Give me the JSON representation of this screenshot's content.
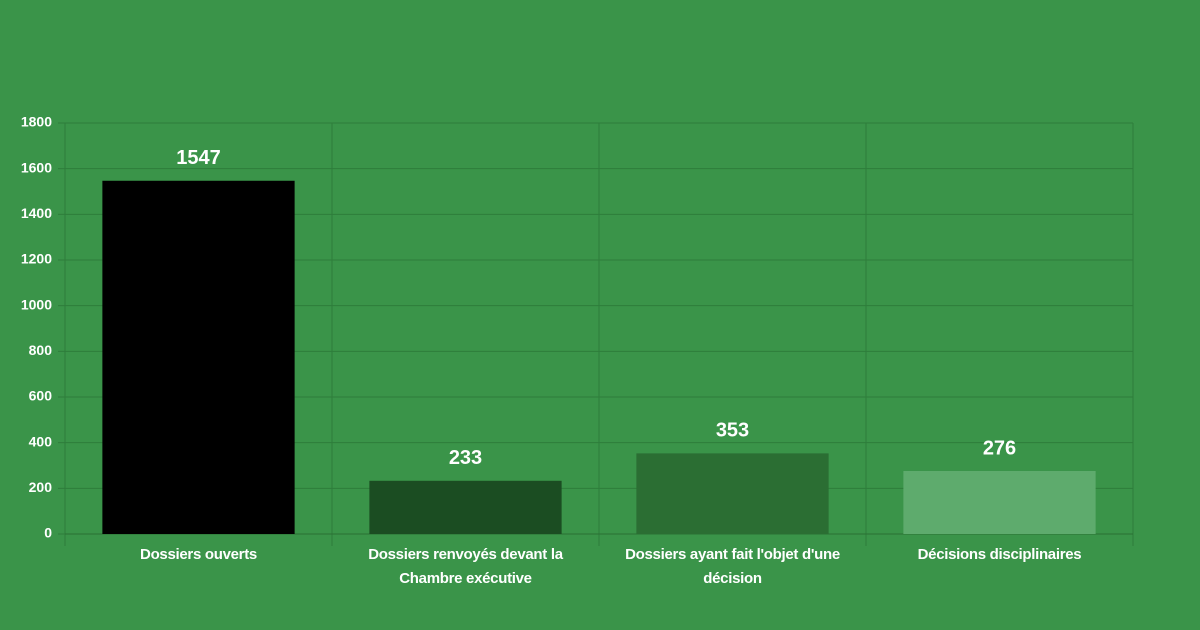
{
  "chart_data": {
    "type": "bar",
    "categories": [
      "Dossiers ouverts",
      "Dossiers renvoyés devant la Chambre exécutive",
      "Dossiers ayant fait l'objet d'une décision",
      "Décisions disciplinaires"
    ],
    "values": [
      1547,
      233,
      353,
      276
    ],
    "colors": [
      "#000000",
      "#1b4d22",
      "#2b6e33",
      "#5eab6d"
    ],
    "ylim": [
      0,
      1800
    ],
    "yticks": [
      0,
      200,
      400,
      600,
      800,
      1000,
      1200,
      1400,
      1600,
      1800
    ],
    "grid": true
  }
}
